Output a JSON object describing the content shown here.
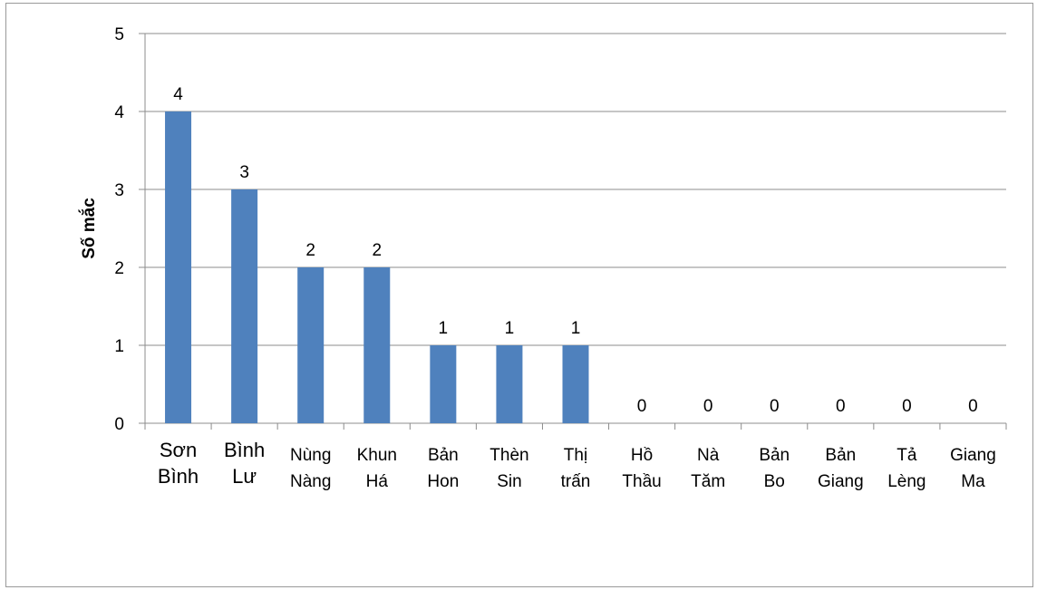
{
  "chart_data": {
    "type": "bar",
    "title": "",
    "xlabel": "",
    "ylabel": "Số mắc",
    "ylim": [
      0,
      5
    ],
    "yticks": [
      0,
      1,
      2,
      3,
      4,
      5
    ],
    "grid": true,
    "bar_color": "#4f81bd",
    "categories": [
      [
        "Sơn",
        "Bình"
      ],
      [
        "Bình",
        "Lư"
      ],
      [
        "Nùng",
        "Nàng"
      ],
      [
        "Khun",
        "Há"
      ],
      [
        "Bản",
        "Hon"
      ],
      [
        "Thèn",
        "Sin"
      ],
      [
        "Thị",
        "trấn"
      ],
      [
        "Hồ",
        "Thầu"
      ],
      [
        "Nà",
        "Tăm"
      ],
      [
        "Bản",
        "Bo"
      ],
      [
        "Bản",
        "Giang"
      ],
      [
        "Tả",
        "Lèng"
      ],
      [
        "Giang",
        "Ma"
      ]
    ],
    "values": [
      4,
      3,
      2,
      2,
      1,
      1,
      1,
      0,
      0,
      0,
      0,
      0,
      0
    ]
  }
}
